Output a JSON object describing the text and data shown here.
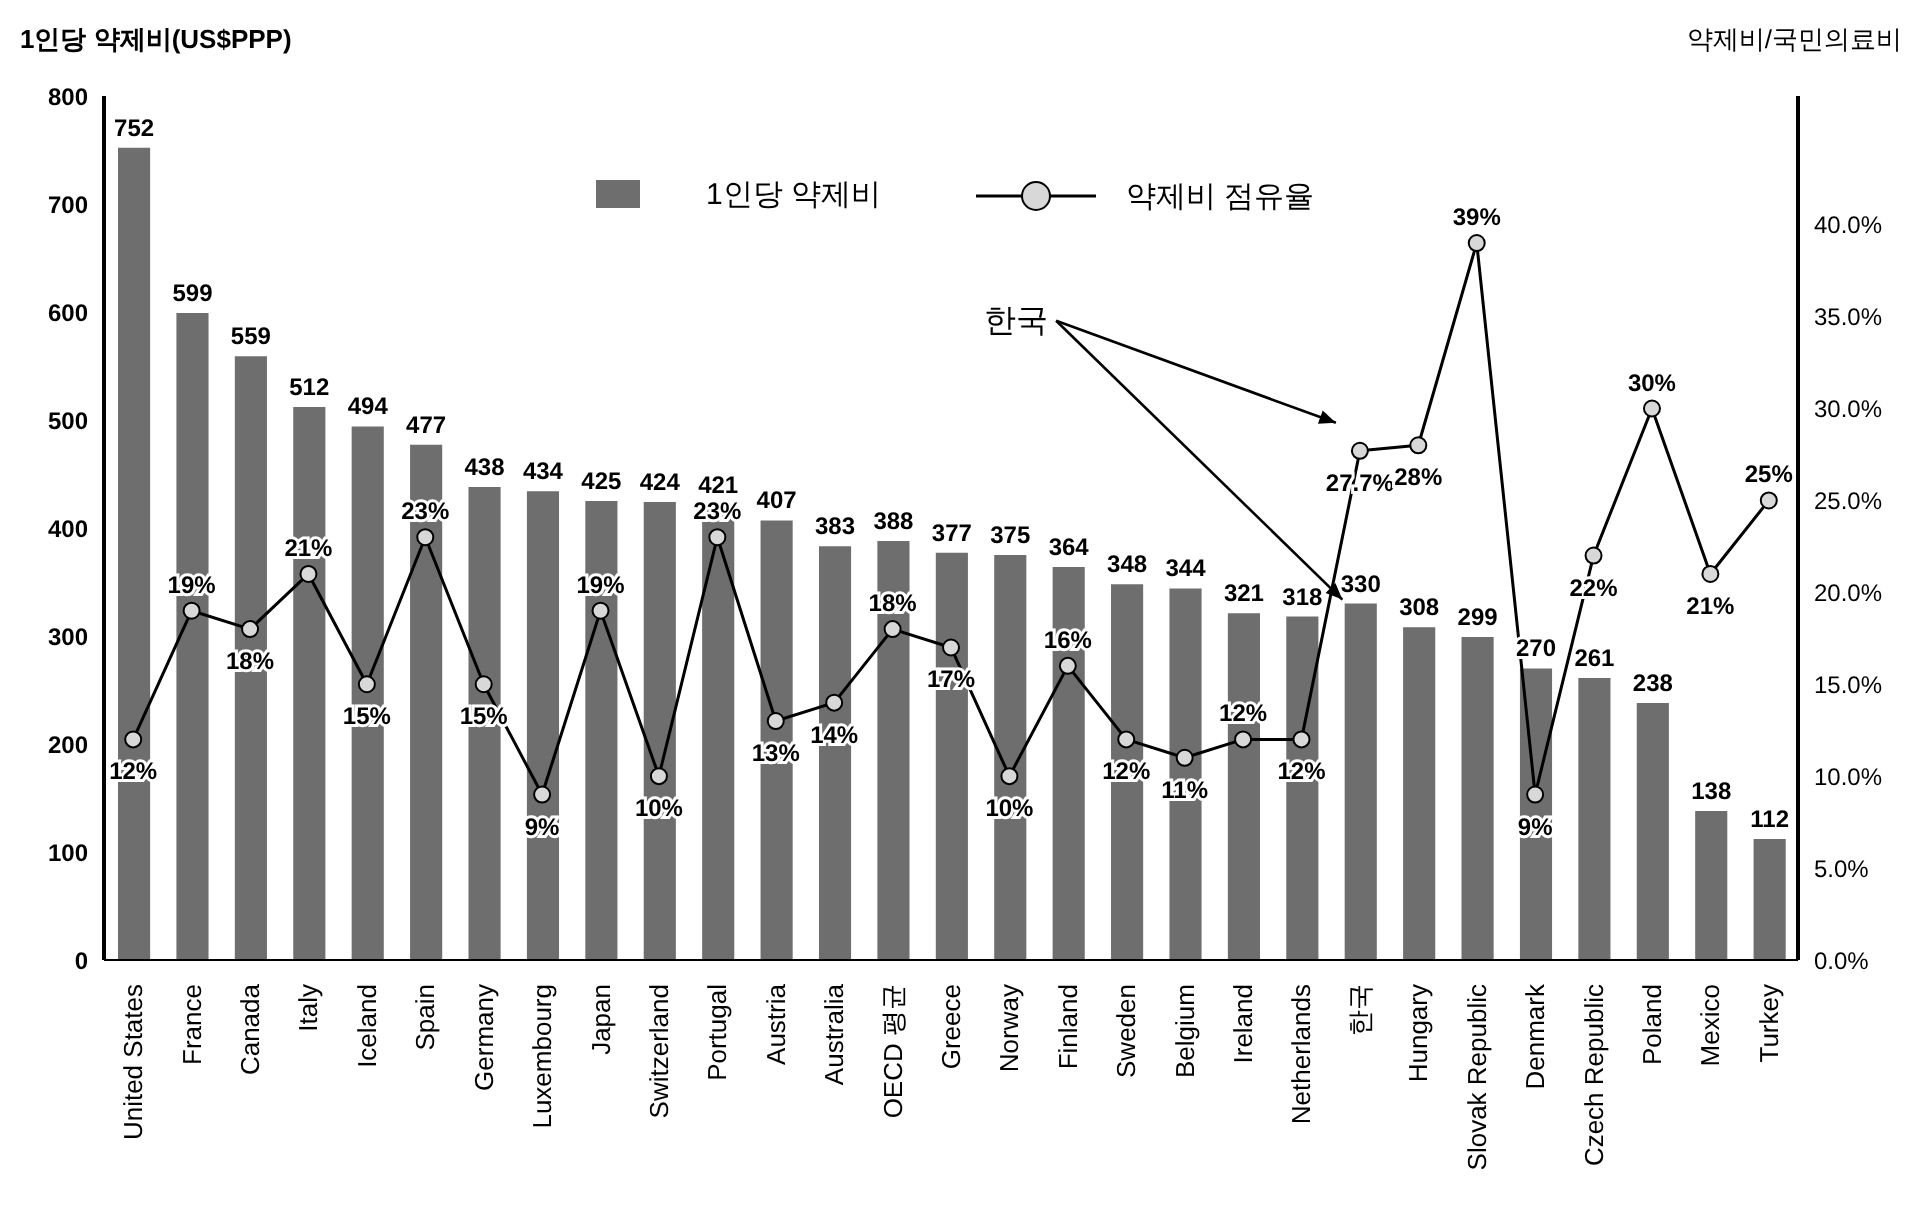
{
  "chart_data": {
    "type": "bar",
    "ylabel": "1인당 약제비(US$PPP)",
    "y2label": "약제비/국민의료비",
    "categories": [
      "United States",
      "France",
      "Canada",
      "Italy",
      "Iceland",
      "Spain",
      "Germany",
      "Luxembourg",
      "Japan",
      "Switzerland",
      "Portugal",
      "Austria",
      "Australia",
      "OECD 평균",
      "Greece",
      "Norway",
      "Finland",
      "Sweden",
      "Belgium",
      "Ireland",
      "Netherlands",
      "한국",
      "Hungary",
      "Slovak Republic",
      "Denmark",
      "Czech Republic",
      "Poland",
      "Mexico",
      "Turkey"
    ],
    "series": [
      {
        "name": "1인당 약제비",
        "color": "#6e6e6e",
        "values": [
          752,
          599,
          559,
          512,
          494,
          477,
          438,
          434,
          425,
          424,
          421,
          407,
          383,
          388,
          377,
          375,
          364,
          348,
          344,
          321,
          318,
          330,
          308,
          299,
          270,
          261,
          238,
          138,
          112
        ]
      },
      {
        "name": "약제비 점유율",
        "type": "line",
        "axis": "y2",
        "color": "#000000",
        "values": [
          12,
          19,
          18,
          21,
          15,
          23,
          15,
          9,
          19,
          10,
          23,
          13,
          14,
          18,
          17,
          10,
          16,
          12,
          11,
          12,
          12,
          27.7,
          28,
          39,
          9,
          22,
          30,
          21,
          25
        ],
        "value_labels": [
          "12%",
          "19%",
          "18%",
          "21%",
          "15%",
          "23%",
          "15%",
          "9%",
          "19%",
          "10%",
          "23%",
          "13%",
          "14%",
          "18%",
          "17%",
          "10%",
          "16%",
          "12%",
          "11%",
          "12%",
          "12%",
          "27.7%",
          "28%",
          "39%",
          "9%",
          "22%",
          "30%",
          "21%",
          "25%"
        ]
      }
    ],
    "data_labels": true,
    "ylim": [
      0,
      800
    ],
    "yticks": [
      0,
      100,
      200,
      300,
      400,
      500,
      600,
      700,
      800
    ],
    "y2lim": [
      0,
      47
    ],
    "y2ticks": [
      {
        "value": 0,
        "label": "0.0%"
      },
      {
        "value": 5,
        "label": "5.0%"
      },
      {
        "value": 10,
        "label": "10.0%"
      },
      {
        "value": 15,
        "label": "15.0%"
      },
      {
        "value": 20,
        "label": "20.0%"
      },
      {
        "value": 25,
        "label": "25.0%"
      },
      {
        "value": 30,
        "label": "30.0%"
      },
      {
        "value": 35,
        "label": "35.0%"
      },
      {
        "value": 40,
        "label": "40.0%"
      }
    ],
    "annotations": [
      {
        "text": "한국",
        "x": "한국",
        "y": 330
      }
    ],
    "legend": "top",
    "grid": false,
    "marker": "circle",
    "line_style": "solid"
  }
}
